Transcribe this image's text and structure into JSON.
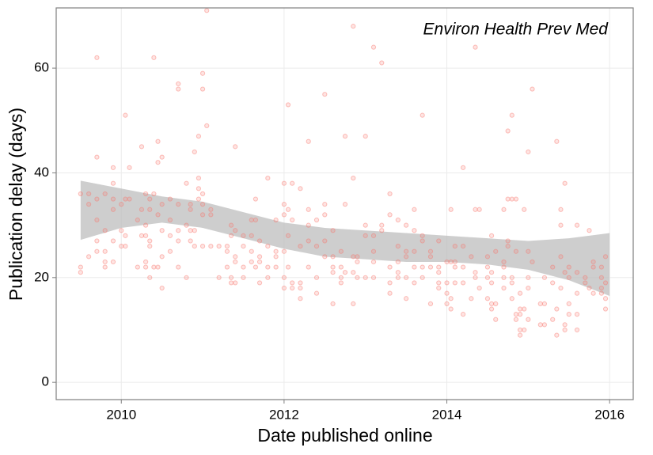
{
  "chart_data": {
    "type": "scatter",
    "annotation": "Environ Health Prev Med",
    "xlabel": "Date published online",
    "ylabel": "Publication delay (days)",
    "xlim": [
      2009.2,
      2016.29
    ],
    "ylim": [
      -3.3,
      71.5
    ],
    "xticks": [
      2010,
      2012,
      2014,
      2016
    ],
    "yticks": [
      0,
      20,
      40,
      60
    ],
    "grid": true,
    "color": "#f8766d",
    "band_color": "#bdbdbd",
    "x": [
      2009.5,
      2009.5,
      2009.5,
      2009.6,
      2009.6,
      2009.6,
      2009.7,
      2009.7,
      2009.7,
      2009.7,
      2009.7,
      2009.7,
      2009.8,
      2009.8,
      2009.8,
      2009.8,
      2009.8,
      2009.9,
      2009.9,
      2009.9,
      2009.9,
      2009.9,
      2009.9,
      2010.0,
      2010.0,
      2010.0,
      2010.05,
      2010.05,
      2010.05,
      2010.05,
      2010.1,
      2010.1,
      2010.2,
      2010.2,
      2010.25,
      2010.25,
      2010.25,
      2010.3,
      2010.3,
      2010.3,
      2010.3,
      2010.3,
      2010.35,
      2010.35,
      2010.35,
      2010.35,
      2010.35,
      2010.4,
      2010.4,
      2010.4,
      2010.45,
      2010.45,
      2010.45,
      2010.45,
      2010.5,
      2010.5,
      2010.5,
      2010.5,
      2010.5,
      2010.6,
      2010.6,
      2010.6,
      2010.6,
      2010.7,
      2010.7,
      2010.7,
      2010.7,
      2010.7,
      2010.7,
      2010.8,
      2010.8,
      2010.8,
      2010.85,
      2010.85,
      2010.85,
      2010.85,
      2010.9,
      2010.9,
      2010.9,
      2010.95,
      2010.95,
      2010.95,
      2010.95,
      2011.0,
      2011.0,
      2011.0,
      2011.0,
      2011.0,
      2011.0,
      2011.05,
      2011.05,
      2011.1,
      2011.1,
      2011.1,
      2011.2,
      2011.2,
      2011.3,
      2011.3,
      2011.3,
      2011.35,
      2011.35,
      2011.35,
      2011.35,
      2011.4,
      2011.4,
      2011.4,
      2011.4,
      2011.4,
      2011.5,
      2011.5,
      2011.5,
      2011.5,
      2011.6,
      2011.6,
      2011.6,
      2011.6,
      2011.65,
      2011.65,
      2011.65,
      2011.7,
      2011.7,
      2011.7,
      2011.7,
      2011.8,
      2011.8,
      2011.8,
      2011.8,
      2011.9,
      2011.9,
      2011.9,
      2011.9,
      2012.0,
      2012.0,
      2012.0,
      2012.0,
      2012.0,
      2012.0,
      2012.05,
      2012.05,
      2012.05,
      2012.05,
      2012.1,
      2012.1,
      2012.1,
      2012.1,
      2012.2,
      2012.2,
      2012.2,
      2012.2,
      2012.2,
      2012.3,
      2012.3,
      2012.3,
      2012.3,
      2012.3,
      2012.4,
      2012.4,
      2012.4,
      2012.4,
      2012.5,
      2012.5,
      2012.5,
      2012.5,
      2012.5,
      2012.6,
      2012.6,
      2012.6,
      2012.6,
      2012.6,
      2012.7,
      2012.7,
      2012.7,
      2012.7,
      2012.75,
      2012.75,
      2012.75,
      2012.85,
      2012.85,
      2012.85,
      2012.85,
      2012.85,
      2012.9,
      2012.9,
      2012.9,
      2013.0,
      2013.0,
      2013.0,
      2013.0,
      2013.1,
      2013.1,
      2013.1,
      2013.1,
      2013.1,
      2013.2,
      2013.2,
      2013.2,
      2013.3,
      2013.3,
      2013.3,
      2013.3,
      2013.3,
      2013.4,
      2013.4,
      2013.4,
      2013.4,
      2013.4,
      2013.5,
      2013.5,
      2013.5,
      2013.5,
      2013.5,
      2013.6,
      2013.6,
      2013.6,
      2013.6,
      2013.6,
      2013.7,
      2013.7,
      2013.7,
      2013.7,
      2013.7,
      2013.8,
      2013.8,
      2013.8,
      2013.8,
      2013.9,
      2013.9,
      2013.9,
      2013.9,
      2013.9,
      2014.0,
      2014.0,
      2014.0,
      2014.0,
      2014.05,
      2014.05,
      2014.05,
      2014.05,
      2014.1,
      2014.1,
      2014.1,
      2014.1,
      2014.2,
      2014.2,
      2014.2,
      2014.2,
      2014.2,
      2014.3,
      2014.3,
      2014.35,
      2014.35,
      2014.35,
      2014.35,
      2014.4,
      2014.4,
      2014.5,
      2014.5,
      2014.5,
      2014.5,
      2014.55,
      2014.55,
      2014.55,
      2014.55,
      2014.55,
      2014.6,
      2014.6,
      2014.6,
      2014.7,
      2014.7,
      2014.7,
      2014.7,
      2014.7,
      2014.75,
      2014.75,
      2014.75,
      2014.75,
      2014.8,
      2014.8,
      2014.8,
      2014.8,
      2014.8,
      2014.85,
      2014.85,
      2014.85,
      2014.85,
      2014.9,
      2014.9,
      2014.9,
      2014.9,
      2014.9,
      2014.95,
      2014.95,
      2014.95,
      2015.0,
      2015.0,
      2015.0,
      2015.0,
      2015.0,
      2015.05,
      2015.05,
      2015.15,
      2015.15,
      2015.2,
      2015.2,
      2015.2,
      2015.3,
      2015.3,
      2015.3,
      2015.35,
      2015.35,
      2015.35,
      2015.4,
      2015.4,
      2015.4,
      2015.4,
      2015.45,
      2015.45,
      2015.45,
      2015.45,
      2015.5,
      2015.5,
      2015.5,
      2015.5,
      2015.6,
      2015.6,
      2015.6,
      2015.6,
      2015.6,
      2015.7,
      2015.7,
      2015.75,
      2015.75,
      2015.8,
      2015.8,
      2015.8,
      2015.9,
      2015.9,
      2015.9,
      2015.9,
      2015.95,
      2015.95,
      2015.95,
      2015.95
    ],
    "values": [
      36,
      22,
      21,
      24,
      34,
      36,
      62,
      25,
      31,
      35,
      43,
      27,
      22,
      25,
      36,
      29,
      23,
      41,
      27,
      23,
      35,
      38,
      33,
      34,
      29,
      26,
      51,
      35,
      26,
      28,
      41,
      35,
      31,
      22,
      45,
      28,
      33,
      28,
      22,
      23,
      36,
      30,
      26,
      27,
      35,
      33,
      20,
      62,
      22,
      36,
      46,
      42,
      22,
      32,
      18,
      43,
      34,
      29,
      24,
      31,
      28,
      35,
      25,
      57,
      56,
      34,
      29,
      22,
      27,
      38,
      30,
      20,
      29,
      33,
      34,
      27,
      44,
      26,
      29,
      35,
      39,
      37,
      47,
      59,
      56,
      34,
      36,
      26,
      32,
      71,
      49,
      33,
      32,
      26,
      20,
      26,
      22,
      25,
      26,
      20,
      19,
      30,
      28,
      45,
      23,
      29,
      24,
      19,
      28,
      22,
      26,
      20,
      25,
      28,
      31,
      23,
      35,
      22,
      31,
      24,
      19,
      23,
      27,
      39,
      22,
      26,
      20,
      31,
      25,
      24,
      22,
      25,
      18,
      38,
      32,
      34,
      20,
      33,
      53,
      22,
      28,
      31,
      18,
      19,
      38,
      18,
      19,
      16,
      26,
      37,
      46,
      33,
      27,
      30,
      22,
      26,
      31,
      17,
      20,
      55,
      32,
      34,
      24,
      27,
      15,
      21,
      22,
      24,
      29,
      22,
      20,
      19,
      25,
      47,
      34,
      21,
      68,
      24,
      39,
      21,
      15,
      23,
      24,
      20,
      47,
      28,
      20,
      30,
      64,
      28,
      25,
      23,
      20,
      61,
      30,
      29,
      36,
      32,
      19,
      22,
      17,
      31,
      23,
      26,
      20,
      21,
      25,
      30,
      16,
      20,
      24,
      33,
      22,
      25,
      29,
      19,
      51,
      28,
      20,
      27,
      22,
      24,
      15,
      22,
      25,
      19,
      22,
      27,
      18,
      21,
      17,
      15,
      19,
      23,
      33,
      16,
      14,
      23,
      26,
      22,
      23,
      19,
      41,
      22,
      26,
      19,
      13,
      16,
      24,
      64,
      33,
      21,
      20,
      33,
      18,
      22,
      24,
      20,
      16,
      15,
      14,
      21,
      28,
      19,
      12,
      15,
      25,
      33,
      23,
      22,
      20,
      18,
      48,
      27,
      26,
      35,
      51,
      35,
      19,
      20,
      16,
      35,
      25,
      12,
      13,
      10,
      9,
      13,
      14,
      17,
      10,
      33,
      14,
      44,
      20,
      12,
      18,
      25,
      56,
      23,
      15,
      11,
      20,
      11,
      15,
      22,
      19,
      12,
      46,
      14,
      9,
      33,
      30,
      18,
      24,
      38,
      11,
      10,
      21,
      22,
      15,
      13,
      20,
      30,
      21,
      13,
      10,
      17,
      20,
      19,
      29,
      18,
      17,
      22,
      23,
      18,
      20,
      17,
      22,
      19,
      16,
      14,
      24
    ],
    "band": {
      "x": [
        2009.5,
        2010,
        2010.5,
        2011,
        2011.5,
        2012,
        2012.5,
        2013,
        2013.5,
        2014,
        2014.5,
        2015,
        2015.5,
        2016
      ],
      "lower": [
        27.2,
        29.5,
        30.5,
        29.5,
        27.5,
        25.5,
        24,
        23.5,
        23,
        23,
        22.5,
        21.5,
        19.5,
        16.5
      ],
      "upper": [
        38.5,
        37,
        35.5,
        34.5,
        32.5,
        30.5,
        29.5,
        29,
        28.5,
        28,
        27.5,
        27,
        27.5,
        28.5
      ]
    }
  }
}
